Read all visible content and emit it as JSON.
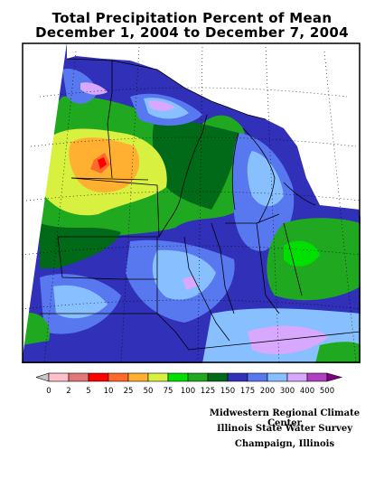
{
  "title": {
    "line1": "Total Precipitation Percent of Mean",
    "line2": "December 1, 2004 to December 7, 2004"
  },
  "legend": {
    "labels": [
      "0",
      "2",
      "5",
      "10",
      "25",
      "50",
      "75",
      "100",
      "125",
      "150",
      "175",
      "200",
      "300",
      "400",
      "500"
    ],
    "colors": [
      "#c8c8c8",
      "#ffc0cb",
      "#e07878",
      "#ff0000",
      "#ff6a2a",
      "#ffb030",
      "#d8f040",
      "#00e000",
      "#20a820",
      "#006a18",
      "#3030b8",
      "#5878f0",
      "#88c0ff",
      "#d8a8ff",
      "#b040c0",
      "#800080"
    ]
  },
  "map": {
    "region": "Midwest United States",
    "dominant_colors": {
      "high": "#5878f0",
      "mid": "#20a820",
      "low": "#ffb030",
      "lowest": "#ff0000"
    }
  },
  "credits": {
    "line1": "Midwestern Regional Climate Center",
    "line2": "Illinois State Water Survey",
    "line3": "Champaign, Illinois"
  }
}
